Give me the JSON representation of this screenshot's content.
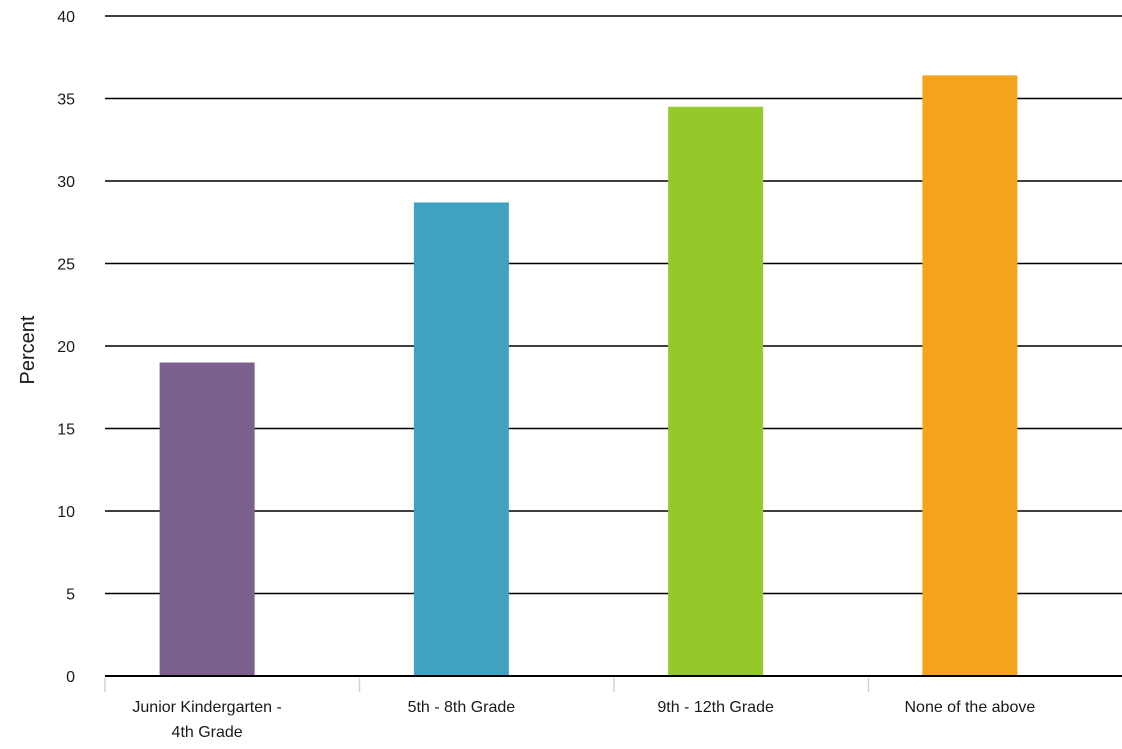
{
  "chart_data": {
    "type": "bar",
    "title": "",
    "xlabel": "",
    "ylabel": "Percent",
    "ylim": [
      0,
      40
    ],
    "yticks": [
      0,
      5,
      10,
      15,
      20,
      25,
      30,
      35,
      40
    ],
    "grid": true,
    "legend": "none",
    "categories": [
      [
        "Junior Kindergarten -",
        "4th Grade"
      ],
      [
        "5th - 8th Grade"
      ],
      [
        "9th - 12th Grade"
      ],
      [
        "None of the above"
      ]
    ],
    "values": [
      19.0,
      28.7,
      34.5,
      36.4
    ],
    "colors": [
      "#7b5f8c",
      "#40a2c0",
      "#95c82a",
      "#f4a41c"
    ]
  }
}
